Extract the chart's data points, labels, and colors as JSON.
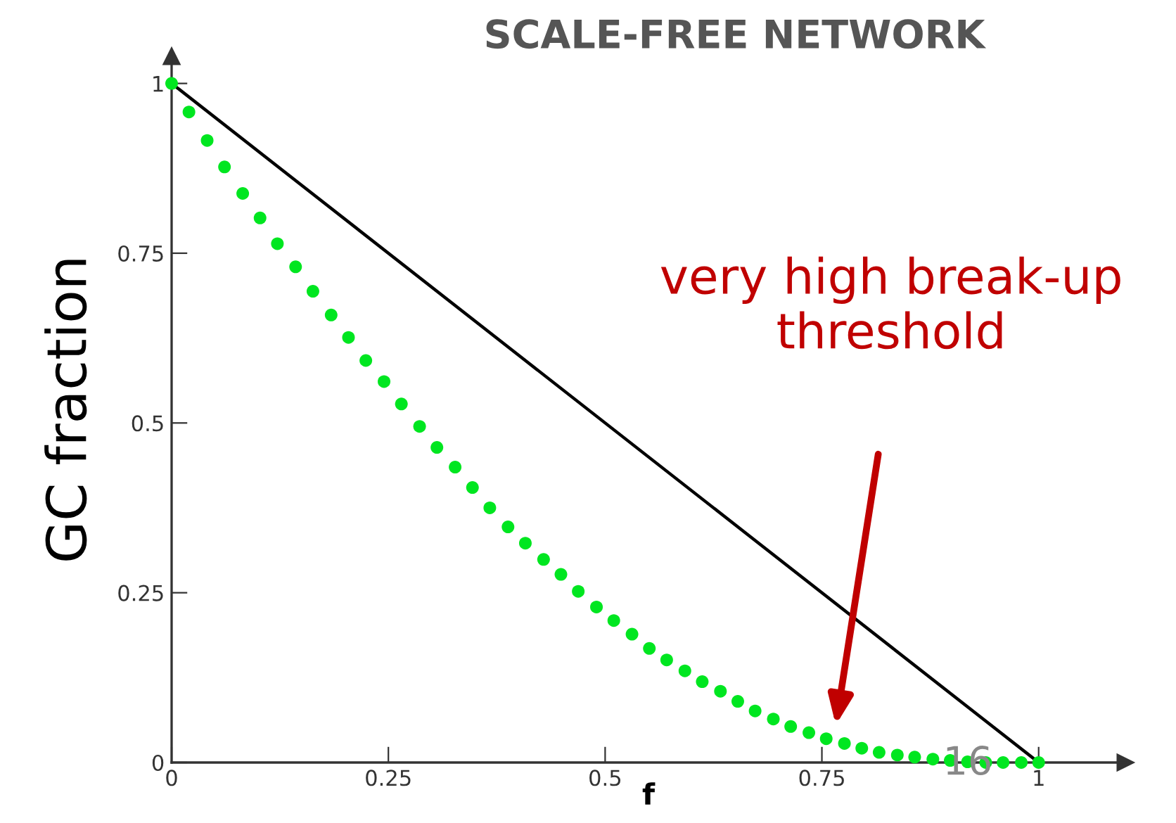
{
  "chart_data": {
    "type": "scatter",
    "title": "SCALE-FREE NETWORK",
    "xlabel": "f",
    "ylabel": "GC fraction",
    "xlim": [
      0,
      1.1
    ],
    "ylim": [
      0,
      1.04
    ],
    "xticks": [
      0,
      0.25,
      0.5,
      0.75,
      1
    ],
    "yticks": [
      0,
      0.25,
      0.5,
      0.75,
      1
    ],
    "grid": false,
    "legend": false,
    "series": [
      {
        "type": "line",
        "color": "#000000",
        "line_style": "solid",
        "x": [
          0,
          1
        ],
        "values": [
          1,
          0
        ]
      },
      {
        "color": "#00e620",
        "marker": "circle",
        "x": [
          0,
          0.02,
          0.041,
          0.061,
          0.082,
          0.102,
          0.122,
          0.143,
          0.163,
          0.184,
          0.204,
          0.224,
          0.245,
          0.265,
          0.286,
          0.306,
          0.327,
          0.347,
          0.367,
          0.388,
          0.408,
          0.429,
          0.449,
          0.469,
          0.49,
          0.51,
          0.531,
          0.551,
          0.571,
          0.592,
          0.612,
          0.633,
          0.653,
          0.673,
          0.694,
          0.714,
          0.735,
          0.755,
          0.776,
          0.796,
          0.816,
          0.837,
          0.857,
          0.878,
          0.898,
          0.918,
          0.939,
          0.959,
          0.98,
          1.0
        ],
        "values": [
          1.0,
          0.958,
          0.916,
          0.877,
          0.838,
          0.802,
          0.764,
          0.73,
          0.694,
          0.659,
          0.626,
          0.592,
          0.561,
          0.528,
          0.495,
          0.464,
          0.435,
          0.405,
          0.375,
          0.347,
          0.323,
          0.299,
          0.277,
          0.252,
          0.229,
          0.209,
          0.189,
          0.168,
          0.151,
          0.135,
          0.119,
          0.105,
          0.09,
          0.076,
          0.064,
          0.053,
          0.044,
          0.035,
          0.028,
          0.021,
          0.015,
          0.011,
          0.008,
          0.005,
          0.003,
          0.001,
          0,
          0,
          0,
          0
        ]
      }
    ],
    "annotations": [
      "very high break-up\nthreshold",
      "16"
    ]
  }
}
